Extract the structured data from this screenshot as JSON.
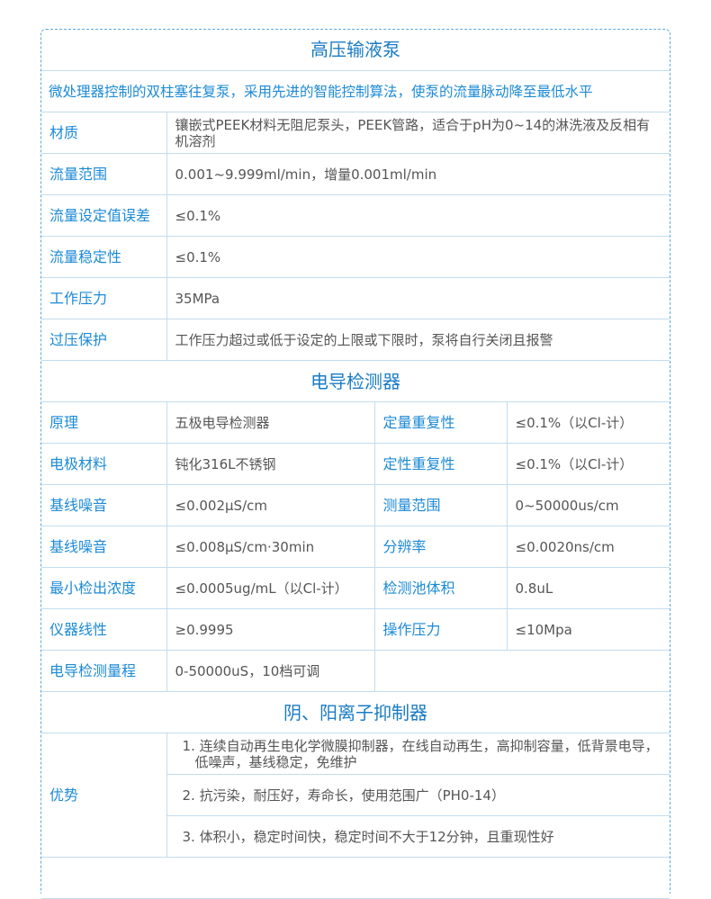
{
  "pump": {
    "title": "高压输液泵",
    "description": "微处理器控制的双柱塞往复泵，采用先进的智能控制算法，使泵的流量脉动降至最低水平",
    "rows": [
      {
        "label": "材质",
        "value": "镶嵌式PEEK材料无阻尼泵头，PEEK管路，适合于pH为0~14的淋洗液及反相有机溶剂"
      },
      {
        "label": "流量范围",
        "value": "0.001~9.999ml/min，增量0.001ml/min"
      },
      {
        "label": "流量设定值误差",
        "value": "≤0.1%"
      },
      {
        "label": "流量稳定性",
        "value": "≤0.1%"
      },
      {
        "label": "工作压力",
        "value": "35MPa"
      },
      {
        "label": "过压保护",
        "value": "工作压力超过或低于设定的上限或下限时，泵将自行关闭且报警"
      }
    ]
  },
  "detector": {
    "title": "电导检测器",
    "rows": [
      {
        "label": "原理",
        "value": "五极电导检测器",
        "label2": "定量重复性",
        "value2": "≤0.1%（以Cl-计）"
      },
      {
        "label": "电极材料",
        "value": "钝化316L不锈钢",
        "label2": "定性重复性",
        "value2": "≤0.1%（以Cl-计）"
      },
      {
        "label": "基线噪音",
        "value": "≤0.002μS/cm",
        "label2": "测量范围",
        "value2": "0~50000us/cm"
      },
      {
        "label": "基线噪音",
        "value": "≤0.008μS/cm·30min",
        "label2": "分辨率",
        "value2": "≤0.0020ns/cm"
      },
      {
        "label": "最小检出浓度",
        "value": "≤0.0005ug/mL（以Cl-计）",
        "label2": "检测池体积",
        "value2": "0.8uL"
      },
      {
        "label": "仪器线性",
        "value": "≥0.9995",
        "label2": "操作压力",
        "value2": "≤10Mpa"
      },
      {
        "label": "电导检测量程",
        "value": "0-50000uS，10档可调",
        "label2": "",
        "value2": ""
      }
    ]
  },
  "suppressor": {
    "title": "阴、阳离子抑制器",
    "label": "优势",
    "items": [
      "1. 连续自动再生电化学微膜抑制器，在线自动再生，高抑制容量，低背景电导，低噪声，基线稳定，免维护",
      "2. 抗污染，耐压好，寿命长，使用范围广（PH0-14）",
      "3. 体积小，稳定时间快，稳定时间不大于12分钟，且重现性好"
    ]
  },
  "colors": {
    "accent": "#1c8ad6",
    "title": "#1a7cc4",
    "border": "#c3dcef",
    "frame": "#5aa9dc"
  }
}
